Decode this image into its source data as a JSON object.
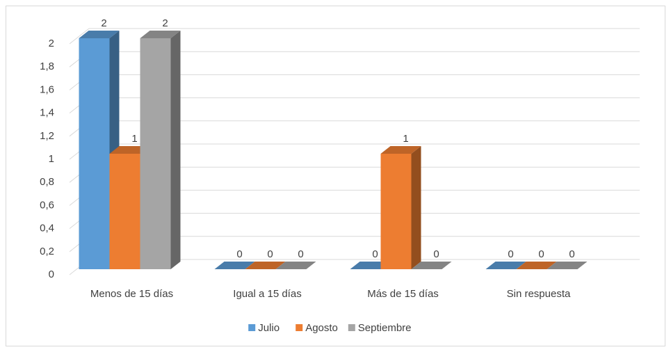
{
  "chart_data": {
    "type": "bar3d",
    "categories": [
      "Menos de 15 días",
      "Igual a 15 días",
      "Más de 15 días",
      "Sin respuesta"
    ],
    "series": [
      {
        "name": "Julio",
        "color": "#5b9bd5",
        "values": [
          2,
          0,
          0,
          0
        ]
      },
      {
        "name": "Agosto",
        "color": "#ed7d31",
        "values": [
          1,
          0,
          1,
          0
        ]
      },
      {
        "name": "Septiembre",
        "color": "#a5a5a5",
        "values": [
          2,
          0,
          0,
          0
        ]
      }
    ],
    "ylim": [
      0,
      2
    ],
    "yticks": [
      0,
      {
        "value": 0.2,
        "label": "0,2"
      },
      {
        "value": 0.4,
        "label": "0,4"
      },
      {
        "value": 0.6,
        "label": "0,6"
      },
      {
        "value": 0.8,
        "label": "0,8"
      },
      1,
      {
        "value": 1.2,
        "label": "1,2"
      },
      {
        "value": 1.4,
        "label": "1,4"
      },
      {
        "value": 1.6,
        "label": "1,6"
      },
      {
        "value": 1.8,
        "label": "1,8"
      },
      2
    ],
    "grid": true,
    "legend": "bottom"
  }
}
